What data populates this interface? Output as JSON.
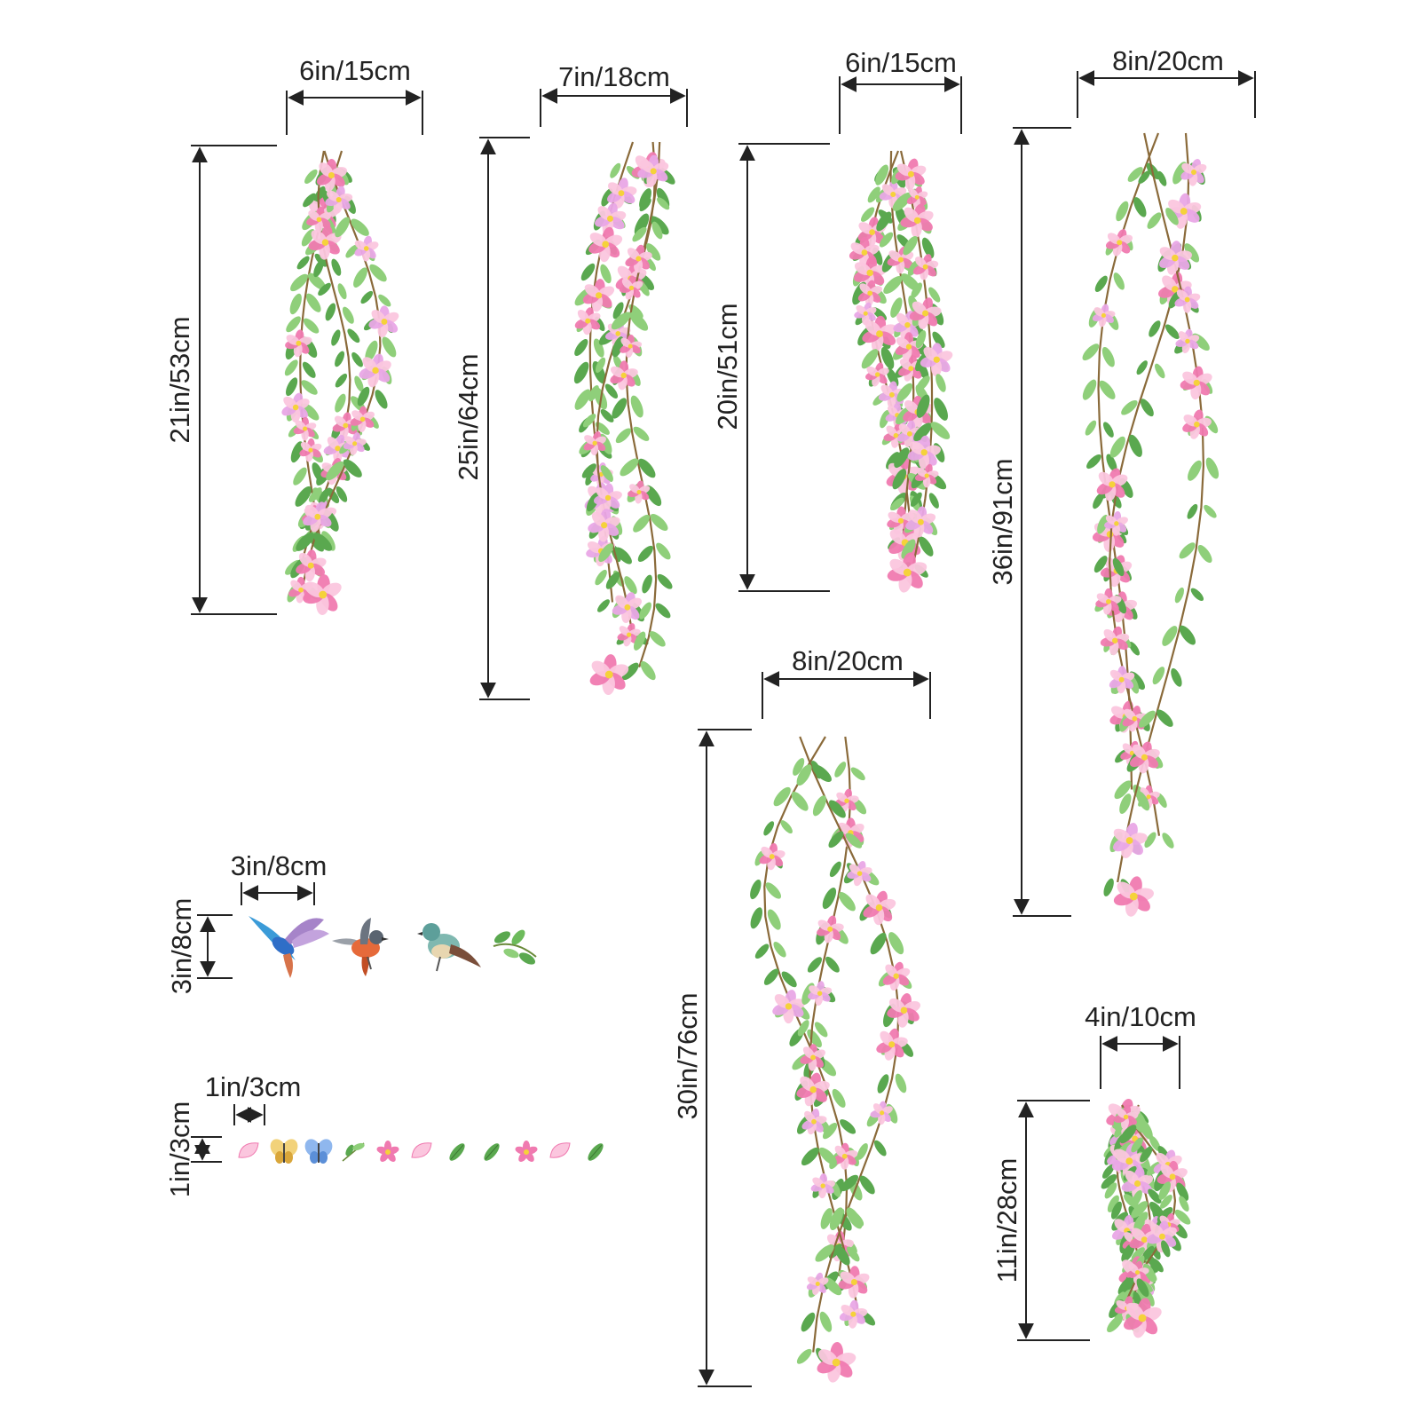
{
  "colors": {
    "ink": "#222222",
    "stem": "#8a6a3a",
    "leaf": "#5aa84f",
    "leaf_light": "#8fcf7a",
    "petal": "#f07ab0",
    "petal_light": "#fbc6de",
    "petal_center": "#f5d23a",
    "lilac": "#e9a6e6"
  },
  "dimensions": {
    "vine1_width": "6in/15cm",
    "vine1_height": "21in/53cm",
    "vine2_width": "7in/18cm",
    "vine2_height": "25in/64cm",
    "vine3_width": "6in/15cm",
    "vine3_height": "20in/51cm",
    "vine4_width": "8in/20cm",
    "vine4_height": "36in/91cm",
    "vine5_width": "8in/20cm",
    "vine5_height": "30in/76cm",
    "vine6_width": "4in/10cm",
    "vine6_height": "11in/28cm",
    "birds_width": "3in/8cm",
    "birds_height": "3in/8cm",
    "small_width": "1in/3cm",
    "small_height": "1in/3cm"
  },
  "stickers": {
    "birds": [
      "hummingbird-icon",
      "robin-icon",
      "songbird-icon",
      "leaf-sprig-icon"
    ],
    "small": [
      "petal-icon",
      "butterfly-icon",
      "blue-butterfly-icon",
      "leaf-sprig-icon",
      "flower-icon",
      "petal-icon",
      "leaf-icon",
      "leaf-icon",
      "flower-icon",
      "petal-icon",
      "leaf-icon"
    ]
  }
}
